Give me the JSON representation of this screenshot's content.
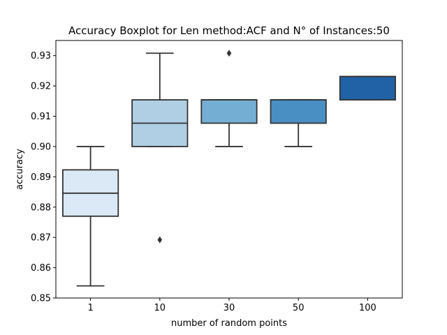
{
  "chart_data": {
    "type": "box",
    "title": "Accuracy Boxplot for Len method:ACF and N° of Instances:50",
    "xlabel": "number of random points",
    "ylabel": "accuracy",
    "ylim": [
      0.85,
      0.935
    ],
    "yticks": [
      "0.85",
      "0.86",
      "0.87",
      "0.88",
      "0.89",
      "0.90",
      "0.91",
      "0.92",
      "0.93"
    ],
    "categories": [
      "1",
      "10",
      "30",
      "50",
      "100"
    ],
    "colors": [
      "#dbe9f6",
      "#b0cfe4",
      "#75aed3",
      "#4a8fc4",
      "#2162a6"
    ],
    "line_color": "#333333",
    "grid": false,
    "boxes": [
      {
        "category": "1",
        "whisker_low": 0.854,
        "q1": 0.877,
        "median": 0.8846,
        "q3": 0.8923,
        "whisker_high": 0.9,
        "outliers": []
      },
      {
        "category": "10",
        "whisker_low": 0.9,
        "q1": 0.9,
        "median": 0.9077,
        "q3": 0.9154,
        "whisker_high": 0.9308,
        "outliers": [
          0.8692
        ]
      },
      {
        "category": "30",
        "whisker_low": 0.9,
        "q1": 0.9077,
        "median": 0.9154,
        "q3": 0.9154,
        "whisker_high": 0.9154,
        "outliers": [
          0.9308
        ]
      },
      {
        "category": "50",
        "whisker_low": 0.9,
        "q1": 0.9077,
        "median": 0.9154,
        "q3": 0.9154,
        "whisker_high": 0.9154,
        "outliers": []
      },
      {
        "category": "100",
        "whisker_low": 0.9154,
        "q1": 0.9154,
        "median": 0.9231,
        "q3": 0.9231,
        "whisker_high": 0.9231,
        "outliers": []
      }
    ]
  }
}
